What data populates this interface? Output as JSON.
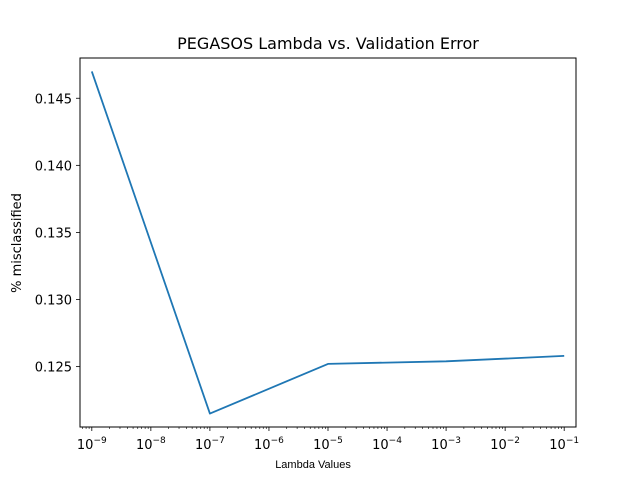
{
  "chart_data": {
    "type": "line",
    "title": "PEGASOS Lambda vs. Validation Error",
    "xlabel": "Lambda Values",
    "ylabel": "% misclassified",
    "xscale": "log",
    "x_tick_exponents": [
      -9,
      -8,
      -7,
      -6,
      -5,
      -4,
      -3,
      -2,
      -1
    ],
    "x_tick_base": "10",
    "x_tick_minus": "−",
    "y_ticks": [
      "0.125",
      "0.130",
      "0.135",
      "0.140",
      "0.145"
    ],
    "y_tick_values": [
      0.125,
      0.13,
      0.135,
      0.14,
      0.145
    ],
    "xlim_exponent": [
      -9.2,
      -0.8
    ],
    "ylim": [
      0.1205,
      0.148
    ],
    "grid": false,
    "line_color": "#1f77b4",
    "series": [
      {
        "x_exponents": [
          -9,
          -7,
          -5,
          -3,
          -1
        ],
        "y": [
          0.147,
          0.1215,
          0.1252,
          0.1254,
          0.1258
        ]
      }
    ]
  }
}
